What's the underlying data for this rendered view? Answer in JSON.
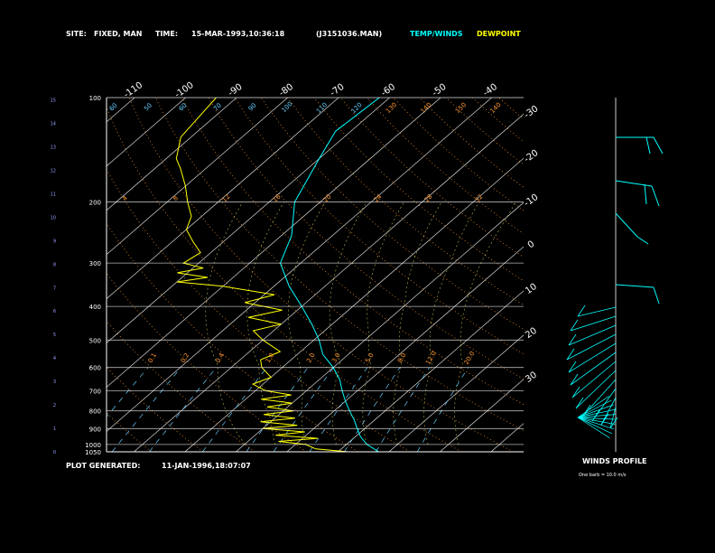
{
  "header": {
    "site_label": "SITE:",
    "site_value": "FIXED, MAN",
    "time_label": "TIME:",
    "time_value": "15-MAR-1993,10:36:18",
    "file": "(J3151036.MAN)",
    "legend_temp": "TEMP/WINDS",
    "legend_dew": "DEWPOINT"
  },
  "footer": {
    "generated_label": "PLOT GENERATED:",
    "generated_value": "11-JAN-1996,18:07:07",
    "winds_title": "WINDS PROFILE",
    "barb_note": "One barb = 10.0 m/s"
  },
  "colors": {
    "background": "#000000",
    "text": "#ffffff",
    "temp": "#00ffff",
    "dewpoint": "#ffff00",
    "isobar": "#ffffff",
    "isotherm": "#ffffff",
    "dry_adiabat": "#ff9933",
    "moist_adiabat": "#ffff66",
    "mixing_ratio": "#66ccff"
  },
  "chart_data": {
    "type": "skew-t",
    "left_axis_label_unit": "km",
    "height_ticks": [
      "0",
      "1",
      "2",
      "3",
      "4",
      "5",
      "6",
      "7",
      "8",
      "9",
      "10",
      "11",
      "12",
      "13",
      "14",
      "15"
    ],
    "pressure_labels": [
      "100",
      "200",
      "300",
      "400",
      "500",
      "600",
      "700",
      "800",
      "900",
      "1000",
      "1050"
    ],
    "pressure_range": [
      100,
      1050
    ],
    "top_temp_labels": [
      "-110",
      "-100",
      "-90",
      "-80",
      "-70",
      "-60",
      "-50",
      "-40"
    ],
    "right_temp_labels": [
      "-30",
      "-20",
      "-10",
      "0",
      "10",
      "20",
      "30"
    ],
    "adiabat_labels_top": [
      "60",
      "50",
      "60",
      "70",
      "90",
      "100",
      "110",
      "120",
      "130",
      "140",
      "150",
      "140"
    ],
    "adiabat_labels_mid": [
      "4",
      "8",
      "12",
      "16",
      "20",
      "24",
      "28",
      "32"
    ],
    "mixing_ratio_labels": [
      "0.1",
      "0.2",
      "0.4",
      "1.0",
      "2.0",
      "3.0",
      "5.0",
      "8.0",
      "12.0",
      "20.0"
    ],
    "temperature_profile": {
      "name": "TEMP/WINDS",
      "points": [
        [
          1050,
          18
        ],
        [
          1000,
          14
        ],
        [
          950,
          11
        ],
        [
          900,
          8.5
        ],
        [
          850,
          6
        ],
        [
          800,
          3
        ],
        [
          750,
          0
        ],
        [
          700,
          -3
        ],
        [
          650,
          -6
        ],
        [
          600,
          -10
        ],
        [
          550,
          -15
        ],
        [
          500,
          -19
        ],
        [
          450,
          -24
        ],
        [
          400,
          -30
        ],
        [
          350,
          -37
        ],
        [
          300,
          -44
        ],
        [
          250,
          -48
        ],
        [
          200,
          -55
        ],
        [
          150,
          -60
        ],
        [
          125,
          -63
        ],
        [
          100,
          -62
        ]
      ]
    },
    "dewpoint_profile": {
      "name": "DEWPOINT",
      "points": [
        [
          1050,
          12
        ],
        [
          1030,
          5
        ],
        [
          1000,
          2
        ],
        [
          980,
          -4
        ],
        [
          960,
          3
        ],
        [
          940,
          -6
        ],
        [
          920,
          -1
        ],
        [
          900,
          -10
        ],
        [
          880,
          -4
        ],
        [
          860,
          -12
        ],
        [
          840,
          -6
        ],
        [
          820,
          -13
        ],
        [
          800,
          -8
        ],
        [
          780,
          -14
        ],
        [
          760,
          -10
        ],
        [
          740,
          -17
        ],
        [
          720,
          -12
        ],
        [
          700,
          -18
        ],
        [
          670,
          -22
        ],
        [
          640,
          -20
        ],
        [
          600,
          -24
        ],
        [
          570,
          -26
        ],
        [
          540,
          -24
        ],
        [
          500,
          -30
        ],
        [
          470,
          -34
        ],
        [
          450,
          -30
        ],
        [
          430,
          -38
        ],
        [
          410,
          -33
        ],
        [
          390,
          -42
        ],
        [
          370,
          -38
        ],
        [
          350,
          -50
        ],
        [
          340,
          -60
        ],
        [
          330,
          -55
        ],
        [
          320,
          -62
        ],
        [
          310,
          -58
        ],
        [
          300,
          -63
        ],
        [
          280,
          -62
        ],
        [
          260,
          -66
        ],
        [
          240,
          -70
        ],
        [
          220,
          -72
        ],
        [
          200,
          -76
        ],
        [
          180,
          -80
        ],
        [
          160,
          -85
        ],
        [
          150,
          -88
        ],
        [
          130,
          -92
        ],
        [
          100,
          -94
        ]
      ]
    },
    "winds_profile": {
      "title": "WINDS PROFILE",
      "note": "One barb = 10.0 m/s"
    }
  }
}
